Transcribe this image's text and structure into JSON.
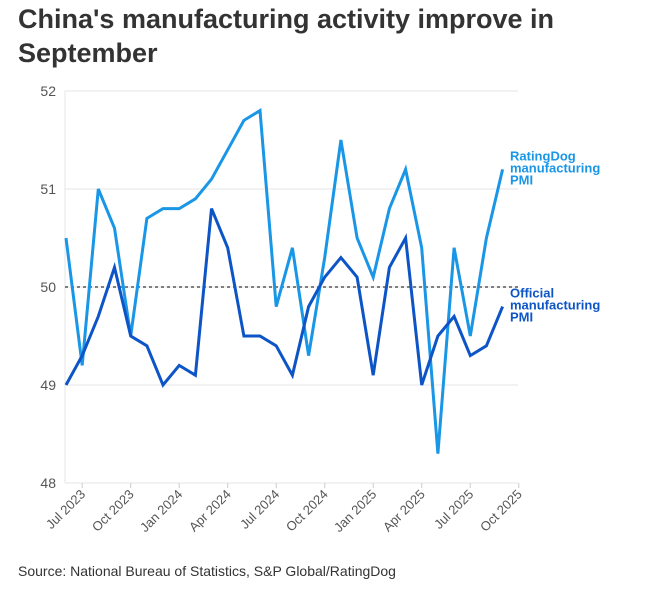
{
  "chart_data": {
    "type": "line",
    "title": "China's manufacturing activity improve in September",
    "xlabel": "",
    "ylabel": "",
    "ylim": [
      48,
      52
    ],
    "yticks": [
      "48",
      "49",
      "50",
      "51",
      "52"
    ],
    "reference_line": 50,
    "grid": true,
    "x": [
      "Jun 2023",
      "Jul 2023",
      "Aug 2023",
      "Sep 2023",
      "Oct 2023",
      "Nov 2023",
      "Dec 2023",
      "Jan 2024",
      "Feb 2024",
      "Mar 2024",
      "Apr 2024",
      "May 2024",
      "Jun 2024",
      "Jul 2024",
      "Aug 2024",
      "Sep 2024",
      "Oct 2024",
      "Nov 2024",
      "Dec 2024",
      "Jan 2025",
      "Feb 2025",
      "Mar 2025",
      "Apr 2025",
      "May 2025",
      "Jun 2025",
      "Jul 2025",
      "Aug 2025",
      "Sep 2025"
    ],
    "xticks": [
      "Jul 2023",
      "Oct 2023",
      "Jan 2024",
      "Apr 2024",
      "Jul 2024",
      "Oct 2024",
      "Jan 2025",
      "Apr 2025",
      "Jul 2025",
      "Oct 2025"
    ],
    "series": [
      {
        "name": "RatingDog manufacturing PMI",
        "label_lines": [
          "RatingDog",
          "manufacturing",
          "PMI"
        ],
        "color": "#1a96e6",
        "values": [
          50.5,
          49.2,
          51.0,
          50.6,
          49.5,
          50.7,
          50.8,
          50.8,
          50.9,
          51.1,
          51.4,
          51.7,
          51.8,
          49.8,
          50.4,
          49.3,
          50.3,
          51.5,
          50.5,
          50.1,
          50.8,
          51.2,
          50.4,
          48.3,
          50.4,
          49.5,
          50.5,
          51.2
        ]
      },
      {
        "name": "Official manufacturing PMI",
        "label_lines": [
          "Official",
          "manufacturing",
          "PMI"
        ],
        "color": "#0d55c6",
        "values": [
          49.0,
          49.3,
          49.7,
          50.2,
          49.5,
          49.4,
          49.0,
          49.2,
          49.1,
          50.8,
          50.4,
          49.5,
          49.5,
          49.4,
          49.1,
          49.8,
          50.1,
          50.3,
          50.1,
          49.1,
          50.2,
          50.5,
          49.0,
          49.5,
          49.7,
          49.3,
          49.4,
          49.8
        ]
      }
    ]
  },
  "source": "Source: National Bureau of Statistics, S&P Global/RatingDog"
}
